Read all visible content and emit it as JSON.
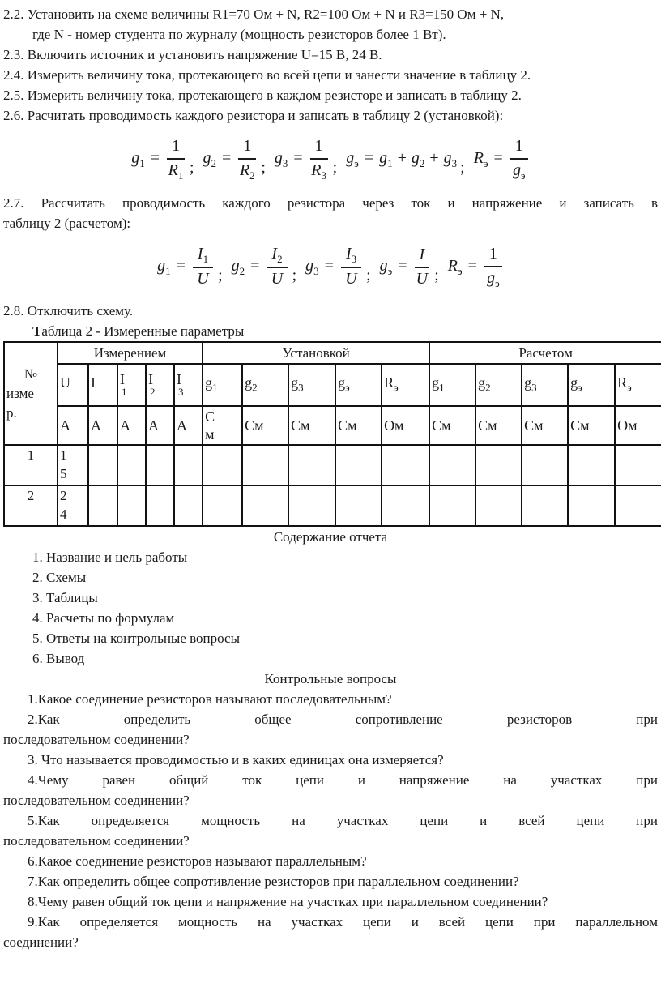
{
  "procedure": {
    "p22": {
      "lines": [
        "2.2. Установить на схеме величины R1=70 Ом + N, R2=100 Ом + N и R3=150 Ом + N,",
        "где N - номер студента по журналу (мощность резисторов более 1 Вт)."
      ]
    },
    "p23": {
      "lines": [
        "2.3. Включить источник и установить напряжение U=15 В, 24 В."
      ]
    },
    "p24": {
      "lines": [
        "2.4. Измерить величину тока, протекающего во всей цепи и занести значение в таблицу 2."
      ]
    },
    "p25": {
      "lines": [
        "2.5. Измерить величину тока, протекающего в каждом резисторе и записать в таблицу 2."
      ]
    },
    "p26": {
      "lines": [
        "2.6. Расчитать проводимость каждого резистора и записать в таблицу 2 (установкой):"
      ]
    },
    "p27": {
      "lines": [
        "2.7. Рассчитать проводимость каждого резистора через ток и напряжение и записать в",
        "таблицу 2 (расчетом):"
      ]
    },
    "p28": {
      "lines": [
        "2.8. Отключить схему."
      ]
    }
  },
  "formulas": {
    "separator": ";",
    "set1": [
      {
        "l": "g",
        "ls": "1",
        "type": "frac",
        "n": "1",
        "ns": "",
        "d": "R",
        "ds": "1"
      },
      {
        "l": "g",
        "ls": "2",
        "type": "frac",
        "n": "1",
        "ns": "",
        "d": "R",
        "ds": "2"
      },
      {
        "l": "g",
        "ls": "3",
        "type": "frac",
        "n": "1",
        "ns": "",
        "d": "R",
        "ds": "3"
      },
      {
        "l": "g",
        "ls": "э",
        "type": "sum",
        "terms": [
          [
            "g",
            "1"
          ],
          [
            "g",
            "2"
          ],
          [
            "g",
            "3"
          ]
        ]
      },
      {
        "l": "R",
        "ls": "э",
        "type": "frac",
        "n": "1",
        "ns": "",
        "d": "g",
        "ds": "э"
      }
    ],
    "set2": [
      {
        "l": "g",
        "ls": "1",
        "type": "frac",
        "n": "I",
        "ns": "1",
        "d": "U",
        "ds": ""
      },
      {
        "l": "g",
        "ls": "2",
        "type": "frac",
        "n": "I",
        "ns": "2",
        "d": "U",
        "ds": ""
      },
      {
        "l": "g",
        "ls": "3",
        "type": "frac",
        "n": "I",
        "ns": "3",
        "d": "U",
        "ds": ""
      },
      {
        "l": "g",
        "ls": "э",
        "type": "frac",
        "n": "I",
        "ns": "",
        "d": "U",
        "ds": ""
      },
      {
        "l": "R",
        "ls": "э",
        "type": "frac",
        "n": "1",
        "ns": "",
        "d": "g",
        "ds": "э"
      }
    ]
  },
  "table": {
    "title_bold": "Т",
    "title_rest": "аблица 2 - Измеренные параметры",
    "corner": {
      "l1": "№",
      "l2": "изме",
      "l3": "р."
    },
    "groups": [
      "Измерением",
      "Установкой",
      "Расчетом"
    ],
    "symbols": {
      "measured": [
        {
          "sym": "U",
          "sub": ""
        },
        {
          "sym": "I",
          "sub": ""
        },
        {
          "sym": "I",
          "sub": "1"
        },
        {
          "sym": "I",
          "sub": "2"
        },
        {
          "sym": "I",
          "sub": "3"
        }
      ],
      "set": [
        {
          "sym": "g",
          "sub": "1"
        },
        {
          "sym": "g",
          "sub": "2"
        },
        {
          "sym": "g",
          "sub": "3"
        },
        {
          "sym": "g",
          "sub": "э"
        },
        {
          "sym": "R",
          "sub": "э"
        }
      ],
      "calc": [
        {
          "sym": "g",
          "sub": "1"
        },
        {
          "sym": "g",
          "sub": "2"
        },
        {
          "sym": "g",
          "sub": "3"
        },
        {
          "sym": "g",
          "sub": "э"
        },
        {
          "sym": "R",
          "sub": "э"
        }
      ]
    },
    "units": {
      "measured": [
        "А",
        "А",
        "А",
        "А",
        "А"
      ],
      "set": [
        "С\nм",
        "См",
        "См",
        "См",
        "Ом"
      ],
      "calc": [
        "См",
        "См",
        "См",
        "См",
        "Ом"
      ]
    },
    "rows": [
      {
        "no": "1",
        "u_value": "15",
        "u_display": "1\n5"
      },
      {
        "no": "2",
        "u_value": "24",
        "u_display": "2\n4"
      }
    ]
  },
  "report": {
    "heading": "Содержание отчета",
    "items": [
      "1. Название и цель работы",
      "2. Схемы",
      "3. Таблицы",
      "4. Расчеты по формулам",
      "5. Ответы на контрольные вопросы",
      "6. Вывод"
    ]
  },
  "questions": {
    "heading": "Контрольные вопросы",
    "items": [
      {
        "lines": [
          "1.Какое соединение резисторов называют последовательным?"
        ]
      },
      {
        "lines": [
          "2.Как определить общее сопротивление резисторов при",
          "последовательном соединении?"
        ],
        "stretch": true
      },
      {
        "lines": [
          "3. Что называется проводимостью и в каких единицах она измеряется?"
        ]
      },
      {
        "lines": [
          "4.Чему равен общий ток цепи и напряжение на участках при",
          "последовательном соединении?"
        ],
        "stretch": true
      },
      {
        "lines": [
          "5.Как определяется мощность на участках цепи и всей цепи при",
          "последовательном соединении?"
        ],
        "stretch": true
      },
      {
        "lines": [
          "6.Какое соединение резисторов называют параллельным?"
        ]
      },
      {
        "lines": [
          "7.Как определить общее сопротивление резисторов при параллельном соединении?"
        ]
      },
      {
        "lines": [
          "8.Чему равен общий ток цепи и напряжение на участках при параллельном соединении?"
        ]
      },
      {
        "lines": [
          "9.Как определяется мощность на участках цепи и всей цепи при параллельном",
          "соединении?"
        ],
        "stretch": true
      }
    ]
  }
}
